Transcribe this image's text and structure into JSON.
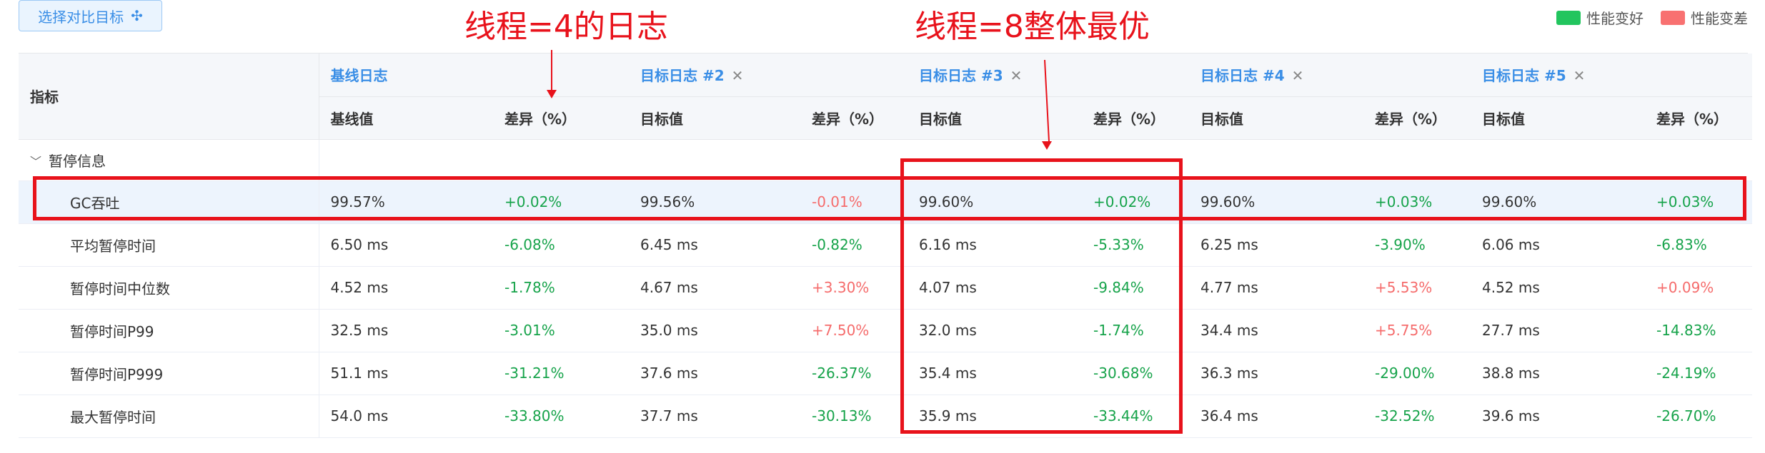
{
  "toolbar": {
    "select_target_label": "选择对比目标",
    "select_icon": "move-icon"
  },
  "legend": {
    "better_label": "性能变好",
    "better_color": "#22c55e",
    "worse_label": "性能变差",
    "worse_color": "#f87171"
  },
  "table": {
    "metric_header": "指标",
    "groups": [
      {
        "name": "基线日志",
        "closable": false,
        "value_label": "基线值",
        "diff_label": ""
      },
      {
        "name": "",
        "closable": false,
        "value_label": "",
        "diff_label": "差异（%）"
      },
      {
        "name": "目标日志 #2",
        "closable": true,
        "value_label": "目标值",
        "diff_label": "差异（%）"
      },
      {
        "name": "目标日志 #3",
        "closable": true,
        "value_label": "目标值",
        "diff_label": "差异（%）"
      },
      {
        "name": "目标日志 #4",
        "closable": true,
        "value_label": "目标值",
        "diff_label": "差异（%）"
      },
      {
        "name": "目标日志 #5",
        "closable": true,
        "value_label": "目标值",
        "diff_label": "差异（%）"
      }
    ],
    "section_label": "暂停信息",
    "rows": [
      {
        "name": "GC吞吐",
        "base": "99.57%",
        "d1": "+0.02%",
        "t2": "99.56%",
        "d2": "-0.01%",
        "t3": "99.60%",
        "d3": "+0.02%",
        "t4": "99.60%",
        "d4": "+0.03%",
        "t5": "99.60%",
        "d5": "+0.03%"
      },
      {
        "name": "平均暂停时间",
        "base": "6.50 ms",
        "d1": "-6.08%",
        "t2": "6.45 ms",
        "d2": "-0.82%",
        "t3": "6.16 ms",
        "d3": "-5.33%",
        "t4": "6.25 ms",
        "d4": "-3.90%",
        "t5": "6.06 ms",
        "d5": "-6.83%"
      },
      {
        "name": "暂停时间中位数",
        "base": "4.52 ms",
        "d1": "-1.78%",
        "t2": "4.67 ms",
        "d2": "+3.30%",
        "t3": "4.07 ms",
        "d3": "-9.84%",
        "t4": "4.77 ms",
        "d4": "+5.53%",
        "t5": "4.52 ms",
        "d5": "+0.09%"
      },
      {
        "name": "暂停时间P99",
        "base": "32.5 ms",
        "d1": "-3.01%",
        "t2": "35.0 ms",
        "d2": "+7.50%",
        "t3": "32.0 ms",
        "d3": "-1.74%",
        "t4": "34.4 ms",
        "d4": "+5.75%",
        "t5": "27.7 ms",
        "d5": "-14.83%"
      },
      {
        "name": "暂停时间P999",
        "base": "51.1 ms",
        "d1": "-31.21%",
        "t2": "37.6 ms",
        "d2": "-26.37%",
        "t3": "35.4 ms",
        "d3": "-30.68%",
        "t4": "36.3 ms",
        "d4": "-29.00%",
        "t5": "38.8 ms",
        "d5": "-24.19%"
      },
      {
        "name": "最大暂停时间",
        "base": "54.0 ms",
        "d1": "-33.80%",
        "t2": "37.7 ms",
        "d2": "-30.13%",
        "t3": "35.9 ms",
        "d3": "-33.44%",
        "t4": "36.4 ms",
        "d4": "-32.52%",
        "t5": "39.6 ms",
        "d5": "-26.70%"
      }
    ]
  },
  "annotations": {
    "left_text": "线程=4的日志",
    "right_text": "线程=8整体最优"
  }
}
